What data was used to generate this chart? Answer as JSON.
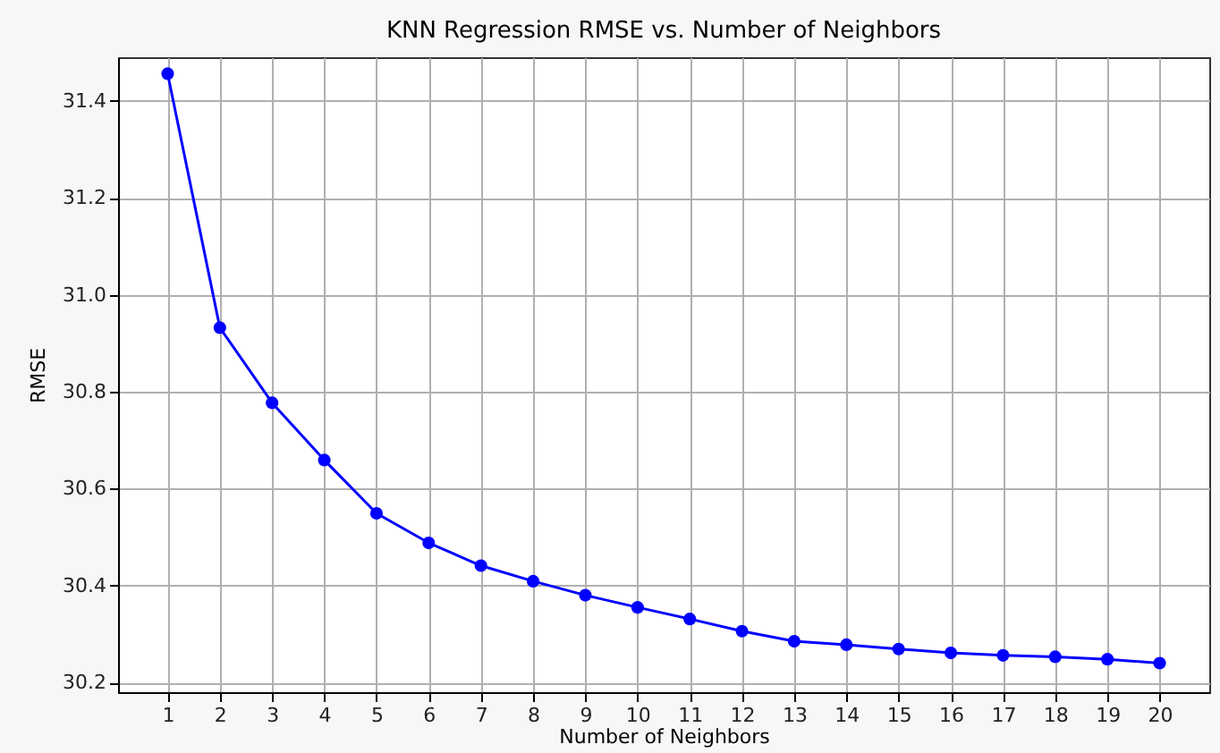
{
  "chart_data": {
    "type": "line",
    "title": "KNN Regression RMSE vs. Number of Neighbors",
    "xlabel": "Number of Neighbors",
    "ylabel": "RMSE",
    "x": [
      1,
      2,
      3,
      4,
      5,
      6,
      7,
      8,
      9,
      10,
      11,
      12,
      13,
      14,
      15,
      16,
      17,
      18,
      19,
      20
    ],
    "series": [
      {
        "color": "#0000ff",
        "values": [
          31.456,
          30.932,
          30.777,
          30.659,
          30.549,
          30.488,
          30.441,
          30.409,
          30.38,
          30.355,
          30.331,
          30.306,
          30.285,
          30.278,
          30.269,
          30.261,
          30.256,
          30.253,
          30.248,
          30.24
        ]
      }
    ],
    "xlim": [
      0.05,
      20.95
    ],
    "xticks": [
      1,
      2,
      3,
      4,
      5,
      6,
      7,
      8,
      9,
      10,
      11,
      12,
      13,
      14,
      15,
      16,
      17,
      18,
      19,
      20
    ],
    "ylim": [
      30.18,
      31.49
    ],
    "yticks": [
      30.2,
      30.4,
      30.6,
      30.8,
      {
        "value": 31,
        "label": "31.0"
      },
      31.2,
      31.4
    ],
    "grid": true,
    "marker": "circle",
    "line_style": "solid"
  }
}
